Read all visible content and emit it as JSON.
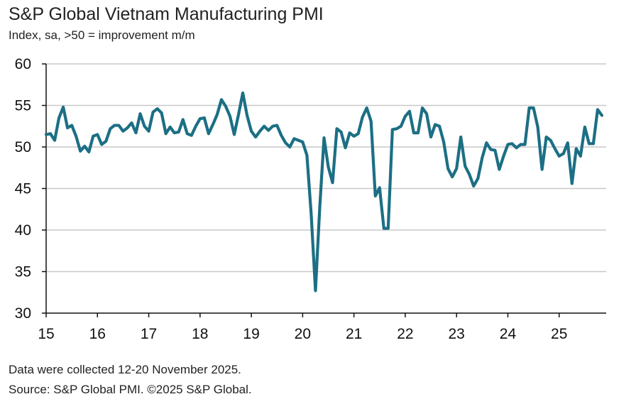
{
  "header": {
    "title": "S&P Global Vietnam Manufacturing PMI",
    "subtitle": "Index, sa, >50 = improvement m/m"
  },
  "footer": {
    "note": "Data were collected 12-20 November 2025.",
    "source": "Source: S&P Global PMI. ©2025 S&P Global."
  },
  "colors": {
    "line": "#1c6f84",
    "grid": "#c8c8c8",
    "axis": "#111111"
  },
  "chart_data": {
    "type": "line",
    "title": "S&P Global Vietnam Manufacturing PMI",
    "subtitle": "Index, sa, >50 = improvement m/m",
    "xlabel": "",
    "ylabel": "",
    "ylim": [
      30,
      60
    ],
    "yticks": [
      30,
      35,
      40,
      45,
      50,
      55,
      60
    ],
    "xlim": [
      2015.0,
      2025.917
    ],
    "xticks": [
      {
        "value": 2015,
        "label": "15"
      },
      {
        "value": 2016,
        "label": "16"
      },
      {
        "value": 2017,
        "label": "17"
      },
      {
        "value": 2018,
        "label": "18"
      },
      {
        "value": 2019,
        "label": "19"
      },
      {
        "value": 2020,
        "label": "20"
      },
      {
        "value": 2021,
        "label": "21"
      },
      {
        "value": 2022,
        "label": "22"
      },
      {
        "value": 2023,
        "label": "23"
      },
      {
        "value": 2024,
        "label": "24"
      },
      {
        "value": 2025,
        "label": "25"
      }
    ],
    "grid": "horizontal",
    "reference_line": 50,
    "series": [
      {
        "name": "Vietnam Manufacturing PMI",
        "start": "2015-01",
        "frequency": "monthly",
        "values": [
          51.5,
          51.6,
          50.8,
          53.5,
          54.8,
          52.3,
          52.6,
          51.3,
          49.5,
          50.1,
          49.4,
          51.3,
          51.5,
          50.3,
          50.7,
          52.2,
          52.6,
          52.6,
          51.9,
          52.3,
          52.9,
          51.7,
          54.0,
          52.5,
          51.9,
          54.2,
          54.6,
          54.1,
          51.6,
          52.4,
          51.7,
          51.8,
          53.3,
          51.6,
          51.4,
          52.5,
          53.4,
          53.5,
          51.6,
          52.7,
          53.9,
          55.7,
          54.9,
          53.7,
          51.5,
          53.9,
          56.5,
          53.8,
          51.9,
          51.2,
          51.9,
          52.5,
          52.0,
          52.5,
          52.6,
          51.4,
          50.5,
          50.0,
          51.0,
          50.8,
          50.6,
          49.0,
          41.9,
          32.7,
          42.7,
          51.1,
          47.6,
          45.7,
          52.2,
          51.8,
          49.9,
          51.7,
          51.3,
          51.6,
          53.6,
          54.7,
          53.1,
          44.1,
          45.1,
          40.2,
          40.2,
          52.1,
          52.2,
          52.5,
          53.7,
          54.3,
          51.7,
          51.7,
          54.7,
          54.0,
          51.2,
          52.7,
          52.5,
          50.6,
          47.4,
          46.4,
          47.4,
          51.2,
          47.7,
          46.7,
          45.3,
          46.2,
          48.7,
          50.5,
          49.7,
          49.6,
          47.3,
          48.9,
          50.3,
          50.4,
          49.9,
          50.3,
          50.3,
          54.7,
          54.7,
          52.4,
          47.3,
          51.2,
          50.8,
          49.8,
          48.9,
          49.2,
          50.5,
          45.6,
          49.8,
          48.9,
          52.4,
          50.4,
          50.4,
          54.5,
          53.8
        ]
      }
    ]
  }
}
